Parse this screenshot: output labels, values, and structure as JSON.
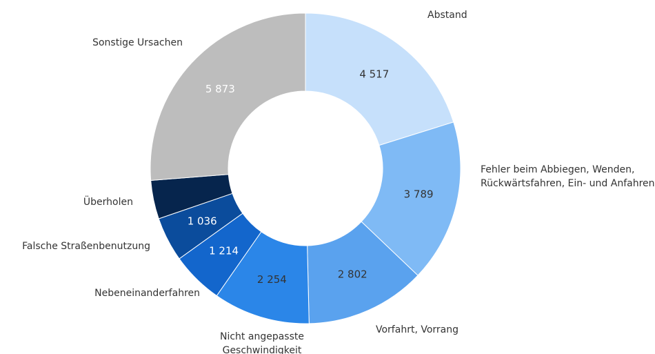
{
  "chart_data": {
    "type": "pie",
    "categories": [
      "Abstand",
      "Fehler beim Abbiegen, Wenden, Rückwärtsfahren, Ein- und Anfahren",
      "Vorfahrt, Vorrang",
      "Nicht angepasste Geschwindigkeit",
      "Nebeneinanderfahren",
      "Falsche Straßenbenutzung",
      "Überholen",
      "Sonstige Ursachen"
    ],
    "values": [
      4517,
      3789,
      2802,
      2254,
      1214,
      1036,
      900,
      5873
    ],
    "value_labels": [
      "4 517",
      "3 789",
      "2 802",
      "2 254",
      "1 214",
      "1 036",
      null,
      "5 873"
    ],
    "colors": [
      "#c6e0fb",
      "#7fbaf5",
      "#5aa2ee",
      "#2b86e8",
      "#1366cc",
      "#0b4c9c",
      "#06254d",
      "#bdbdbd"
    ]
  }
}
